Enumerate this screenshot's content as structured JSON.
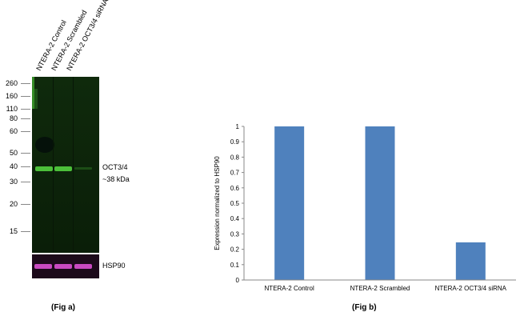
{
  "figure_a": {
    "lanes": [
      "NTERA-2 Control",
      "NTERA-2 Scrambled",
      "NTERA-2 OCT3/4 siRNA"
    ],
    "markers": [
      "260",
      "160",
      "110",
      "80",
      "60",
      "50",
      "40",
      "30",
      "20",
      "15"
    ],
    "target_label": "OCT3/4",
    "target_size": "~38 kDa",
    "loading_control": "HSP90",
    "caption": "(Fig a)"
  },
  "figure_b": {
    "caption": "(Fig b)"
  },
  "chart_data": {
    "type": "bar",
    "categories": [
      "NTERA-2 Control",
      "NTERA-2 Scrambled",
      "NTERA-2 OCT3/4 siRNA"
    ],
    "values": [
      1.0,
      1.0,
      0.245
    ],
    "ylabel": "Expression  normalized to HSP90",
    "xlabel": "",
    "ylim": [
      0,
      1
    ],
    "yticks": [
      "0",
      "0.1",
      "0.2",
      "0.3",
      "0.4",
      "0.5",
      "0.6",
      "0.7",
      "0.8",
      "0.9",
      "1"
    ],
    "bar_color": "#4f81bd",
    "grid": false
  }
}
